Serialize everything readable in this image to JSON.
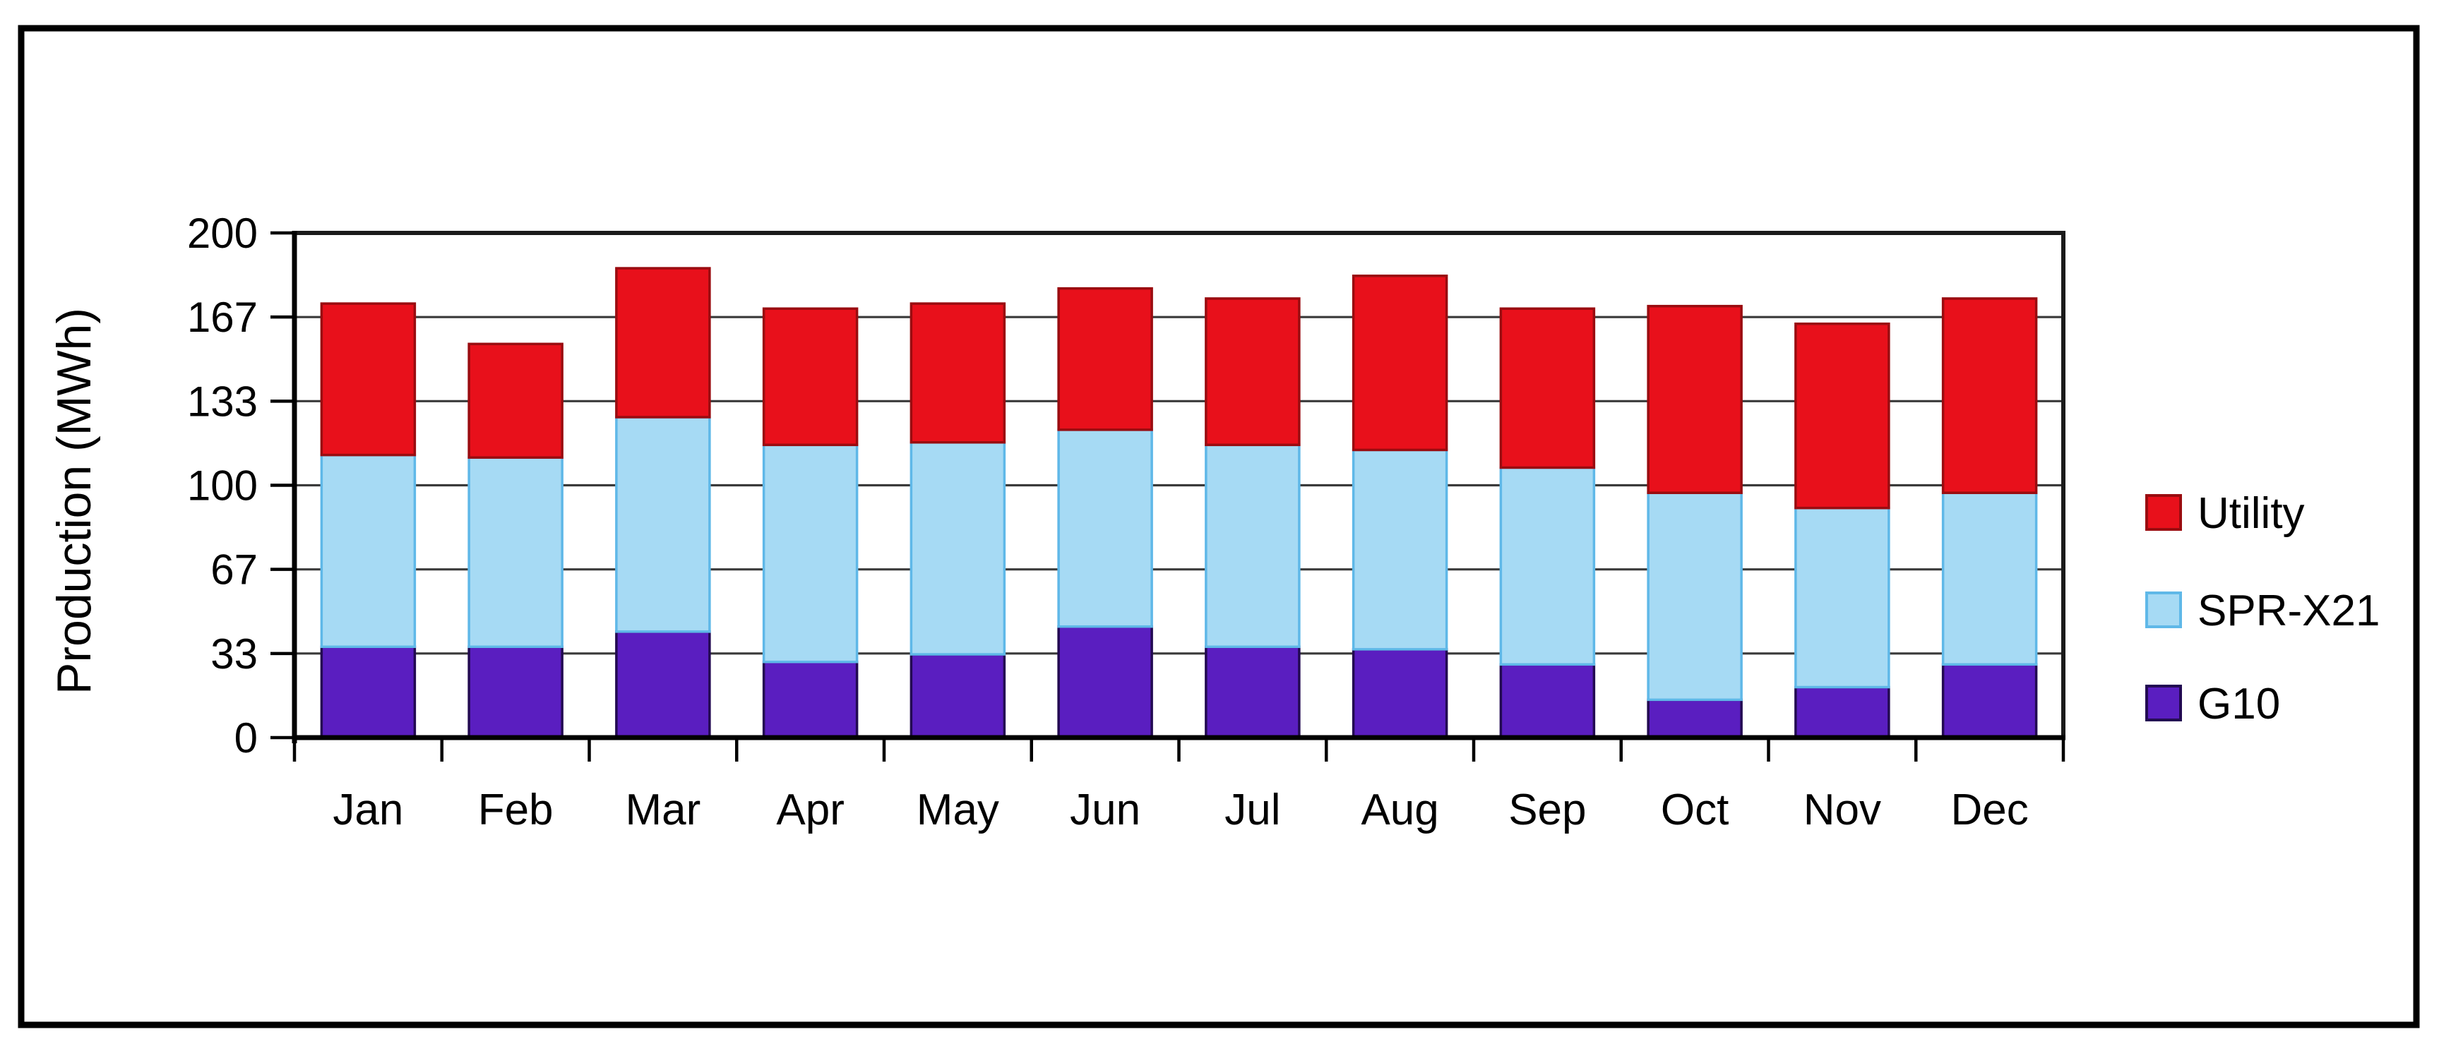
{
  "chart_data": {
    "type": "bar",
    "stacked": true,
    "title": "",
    "xlabel": "",
    "ylabel": "Production (MWh)",
    "ylim": [
      0,
      200
    ],
    "ytick_values": [
      0,
      33.333,
      66.667,
      100,
      133.333,
      166.667,
      200
    ],
    "ytick_labels": [
      "0",
      "33",
      "67",
      "100",
      "133",
      "167",
      "200"
    ],
    "grid": true,
    "legend_position": "right",
    "categories": [
      "Jan",
      "Feb",
      "Mar",
      "Apr",
      "May",
      "Jun",
      "Jul",
      "Aug",
      "Sep",
      "Oct",
      "Nov",
      "Dec"
    ],
    "series": [
      {
        "name": "G10",
        "color": "#5A1EC0",
        "border": "#230A52",
        "values": [
          36,
          36,
          42,
          30,
          33,
          44,
          36,
          35,
          29,
          15,
          20,
          29
        ]
      },
      {
        "name": "SPR-X21",
        "color": "#A6DAF4",
        "border": "#5FB8E8",
        "values": [
          76,
          75,
          85,
          86,
          84,
          78,
          80,
          79,
          78,
          82,
          71,
          68
        ]
      },
      {
        "name": "Utility",
        "color": "#E8101B",
        "border": "#9A0C10",
        "values": [
          60,
          45,
          59,
          54,
          55,
          56,
          58,
          69,
          63,
          74,
          73,
          77
        ]
      }
    ],
    "legend_order_top_to_bottom": [
      "Utility",
      "SPR-X21",
      "G10"
    ]
  }
}
